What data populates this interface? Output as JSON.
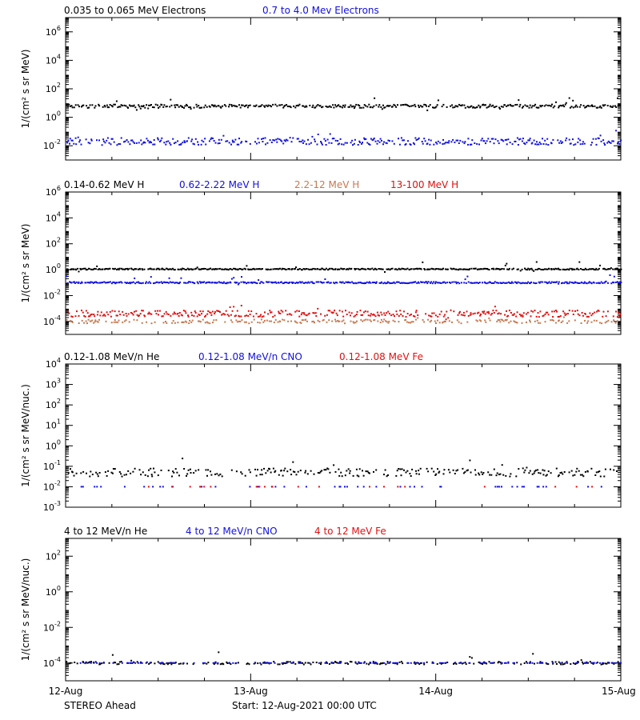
{
  "colors": {
    "black": "#000000",
    "blue": "#1010e0",
    "tan": "#c87850",
    "red": "#e01010"
  },
  "x_axis": {
    "tick_labels": [
      "12-Aug",
      "13-Aug",
      "14-Aug",
      "15-Aug"
    ],
    "tick_days": [
      0,
      1,
      2,
      3
    ],
    "xlim": [
      0,
      3
    ]
  },
  "footer": {
    "spacecraft": "STEREO Ahead",
    "start": "Start: 12-Aug-2021 00:00 UTC"
  },
  "chart_data": [
    {
      "type": "scatter",
      "ylabel": "1/(cm² s sr MeV)",
      "ylog": true,
      "ylim_exp": [
        -3,
        7
      ],
      "ytick_exps": [
        -2,
        0,
        2,
        4,
        6
      ],
      "legend": [
        {
          "label": "0.035 to 0.065 MeV Electrons",
          "color": "black"
        },
        {
          "label": "0.7 to 4.0 Mev Electrons",
          "color": "blue"
        }
      ],
      "series": [
        {
          "name": "0.035 to 0.065 MeV Electrons",
          "color": "black",
          "level": 6,
          "spread": 0.12,
          "density": 0.9
        },
        {
          "name": "0.7 to 4.0 Mev Electrons",
          "color": "blue",
          "level": 0.02,
          "spread": 0.25,
          "density": 0.8
        }
      ]
    },
    {
      "type": "scatter",
      "ylabel": "1/(cm² s sr MeV)",
      "ylog": true,
      "ylim_exp": [
        -5,
        6
      ],
      "ytick_exps": [
        -4,
        -2,
        0,
        2,
        4,
        6
      ],
      "legend": [
        {
          "label": "0.14-0.62 MeV H",
          "color": "black"
        },
        {
          "label": "0.62-2.22 MeV H",
          "color": "blue"
        },
        {
          "label": "2.2-12 MeV H",
          "color": "tan"
        },
        {
          "label": "13-100 MeV H",
          "color": "red"
        }
      ],
      "series": [
        {
          "name": "0.14-0.62 MeV H",
          "color": "black",
          "level": 1.1,
          "spread": 0.05,
          "density": 0.95
        },
        {
          "name": "0.62-2.22 MeV H",
          "color": "blue",
          "level": 0.1,
          "spread": 0.06,
          "density": 0.95
        },
        {
          "name": "2.2-12 MeV H",
          "color": "tan",
          "level": 0.0001,
          "spread": 0.15,
          "density": 0.5
        },
        {
          "name": "13-100 MeV H",
          "color": "red",
          "level": 0.0004,
          "spread": 0.25,
          "density": 0.8
        }
      ]
    },
    {
      "type": "scatter",
      "ylabel": "1/(cm² s sr MeV/nuc.)",
      "ylog": true,
      "ylim_exp": [
        -3,
        4
      ],
      "ytick_exps": [
        -3,
        -2,
        -1,
        0,
        1,
        2,
        3,
        4
      ],
      "legend": [
        {
          "label": "0.12-1.08 MeV/n He",
          "color": "black"
        },
        {
          "label": "0.12-1.08 MeV/n CNO",
          "color": "blue"
        },
        {
          "label": "0.12-1.08 MeV Fe",
          "color": "red"
        }
      ],
      "series": [
        {
          "name": "0.12-1.08 MeV/n He",
          "color": "black",
          "level": 0.05,
          "spread": 0.2,
          "density": 0.55
        },
        {
          "name": "0.12-1.08 MeV/n CNO",
          "color": "blue",
          "level": 0.01,
          "spread": 0.0,
          "density": 0.12
        },
        {
          "name": "0.12-1.08 MeV Fe",
          "color": "red",
          "level": 0.01,
          "spread": 0.0,
          "density": 0.05
        }
      ]
    },
    {
      "type": "scatter",
      "ylabel": "1/(cm² s sr MeV/nuc.)",
      "ylog": true,
      "ylim_exp": [
        -5,
        3
      ],
      "ytick_exps": [
        -4,
        -2,
        0,
        2
      ],
      "legend": [
        {
          "label": "4 to 12 MeV/n He",
          "color": "black"
        },
        {
          "label": "4 to 12 MeV/n CNO",
          "color": "blue"
        },
        {
          "label": "4 to 12 MeV Fe",
          "color": "red"
        }
      ],
      "series": [
        {
          "name": "4 to 12 MeV/n He",
          "color": "black",
          "level": 0.0001,
          "spread": 0.08,
          "density": 0.45
        },
        {
          "name": "4 to 12 MeV/n CNO",
          "color": "blue",
          "level": 0.0001,
          "spread": 0.0,
          "density": 0.3
        },
        {
          "name": "4 to 12 MeV Fe",
          "color": "red",
          "level": 1e-05,
          "spread": 0.0,
          "density": 0.03
        }
      ]
    }
  ]
}
